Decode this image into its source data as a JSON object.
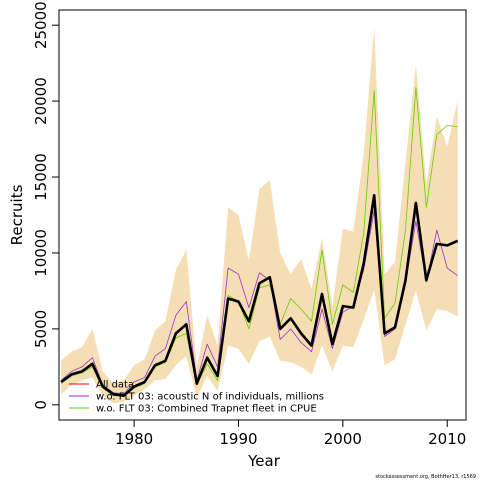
{
  "chart_data": {
    "type": "line",
    "xlabel": "Year",
    "ylabel": "Recruits",
    "xlim": [
      1972.8,
      2011.8
    ],
    "ylim": [
      -1000,
      26000
    ],
    "x_ticks": [
      1980,
      1990,
      2000,
      2010
    ],
    "y_ticks": [
      0,
      5000,
      10000,
      15000,
      20000,
      25000
    ],
    "grid": false,
    "legend_position": "bottom-left",
    "years": [
      1973,
      1974,
      1975,
      1976,
      1977,
      1978,
      1979,
      1980,
      1981,
      1982,
      1983,
      1984,
      1985,
      1986,
      1987,
      1988,
      1989,
      1990,
      1991,
      1992,
      1993,
      1994,
      1995,
      1996,
      1997,
      1998,
      1999,
      2000,
      2001,
      2002,
      2003,
      2004,
      2005,
      2006,
      2007,
      2008,
      2009,
      2010,
      2011
    ],
    "band": {
      "upper": [
        2900,
        3500,
        3800,
        5000,
        2200,
        1400,
        1600,
        2600,
        3000,
        4900,
        5500,
        8900,
        10200,
        2500,
        5900,
        3900,
        13000,
        12500,
        9500,
        14200,
        14800,
        10000,
        8600,
        9600,
        7600,
        11000,
        6500,
        11600,
        11400,
        16500,
        24900,
        8600,
        9400,
        16000,
        22400,
        14500,
        19000,
        17000,
        20000
      ],
      "lower": [
        700,
        1300,
        1600,
        1800,
        600,
        100,
        200,
        600,
        1000,
        1600,
        1700,
        2600,
        3200,
        500,
        1900,
        900,
        3900,
        3700,
        2700,
        4200,
        4500,
        2900,
        2800,
        2500,
        2000,
        3900,
        2200,
        3900,
        3800,
        5600,
        7600,
        2600,
        3000,
        5300,
        7500,
        4900,
        6300,
        6200,
        5800
      ],
      "color": "#F5DEB3"
    },
    "series": [
      {
        "name": "All data",
        "color": "#ff0000",
        "values": [
          1500,
          2000,
          2200,
          2700,
          1200,
          700,
          600,
          1200,
          1500,
          2600,
          2900,
          4700,
          5300,
          1400,
          3100,
          1900,
          7000,
          6800,
          5500,
          8000,
          8400,
          5000,
          5700,
          4700,
          3900,
          7300,
          4000,
          6500,
          6400,
          9300,
          13800,
          4700,
          5100,
          8200,
          13300,
          8200,
          10600,
          10500,
          10800
        ]
      },
      {
        "name": "w.o. FLT 03:   acoustic   N of individuals, millions",
        "color": "#9932CC",
        "values": [
          1600,
          2200,
          2500,
          3100,
          1300,
          800,
          700,
          1500,
          1800,
          3200,
          3700,
          5900,
          6800,
          1600,
          4000,
          2500,
          9000,
          8600,
          6400,
          8700,
          8200,
          4300,
          5000,
          4100,
          3500,
          6300,
          3700,
          6100,
          6500,
          8900,
          12800,
          4500,
          5000,
          8000,
          12100,
          8100,
          11500,
          9000,
          8500
        ]
      },
      {
        "name": "w.o. FLT 03: Combined Trapnet fleet in CPUE",
        "color": "#66CC00",
        "values": [
          1400,
          1900,
          2100,
          2500,
          1100,
          600,
          600,
          1100,
          1400,
          2500,
          2800,
          4400,
          4700,
          1300,
          2700,
          1600,
          7200,
          6800,
          5000,
          7700,
          7900,
          5300,
          7000,
          6300,
          5500,
          10200,
          5300,
          7900,
          7400,
          11300,
          20700,
          5700,
          6700,
          11500,
          20900,
          13000,
          17800,
          18400,
          18300
        ]
      },
      {
        "name": "",
        "color": "#000000",
        "values": [
          1500,
          2000,
          2200,
          2700,
          1200,
          700,
          600,
          1200,
          1500,
          2600,
          2900,
          4700,
          5300,
          1400,
          3100,
          1900,
          7000,
          6800,
          5500,
          8000,
          8400,
          5000,
          5700,
          4700,
          3900,
          7300,
          4000,
          6500,
          6400,
          9300,
          13800,
          4700,
          5100,
          8200,
          13300,
          8200,
          10600,
          10500,
          10800
        ]
      }
    ]
  },
  "credit": "stockassessment.org, BothHer13, r1569"
}
